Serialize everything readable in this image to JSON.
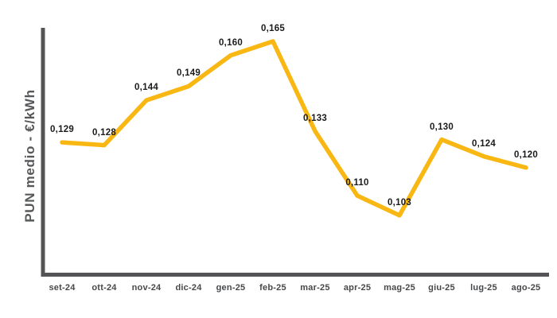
{
  "chart": {
    "y_axis_title": "PUN medio - €/kWh"
  },
  "chart_data": {
    "type": "line",
    "title": "",
    "ylabel": "PUN medio - €/kWh",
    "xlabel": "",
    "categories": [
      "set-24",
      "ott-24",
      "nov-24",
      "dic-24",
      "gen-25",
      "feb-25",
      "mar-25",
      "apr-25",
      "mag-25",
      "giu-25",
      "lug-25",
      "ago-25"
    ],
    "values": [
      0.129,
      0.128,
      0.144,
      0.149,
      0.16,
      0.165,
      0.133,
      0.11,
      0.103,
      0.13,
      0.124,
      0.12
    ],
    "point_labels": [
      "0,129",
      "0,128",
      "0,144",
      "0,149",
      "0,160",
      "0,165",
      "0,133",
      "0,110",
      "0,103",
      "0,130",
      "0,124",
      "0,120"
    ],
    "ylim": [
      0.082,
      0.165
    ],
    "grid": false,
    "legend_position": "none",
    "line_color": "#F8B712",
    "axis_color": "#545456",
    "label_color": "#1b1b1b",
    "tick_color": "#47484a"
  }
}
